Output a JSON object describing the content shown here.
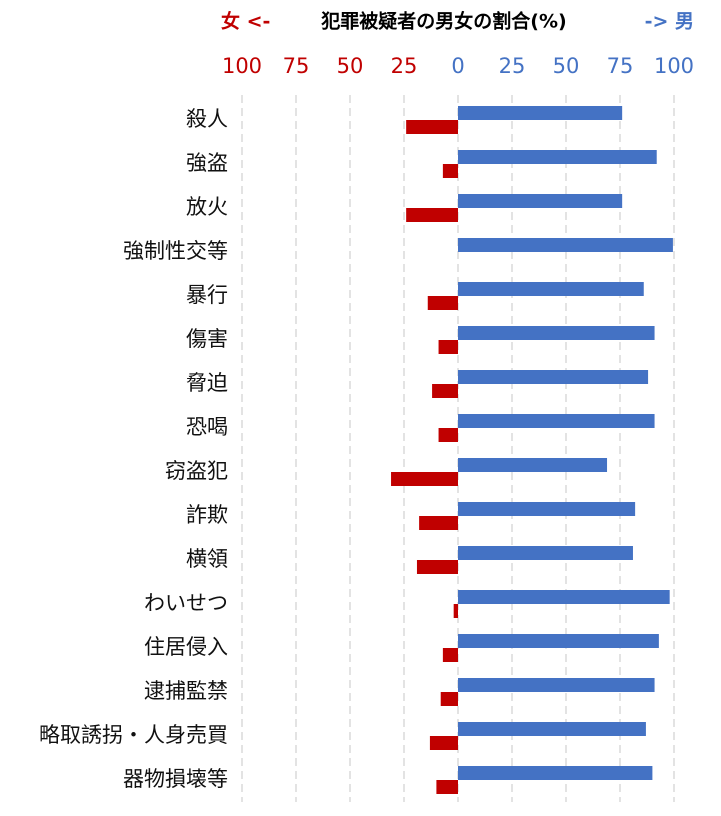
{
  "chart_data": {
    "type": "butterfly-bar",
    "title_left": "女 <-",
    "title": "犯罪被疑者の男女の割合(%)",
    "title_right": "-> 男",
    "title_left_color": "#c00000",
    "title_right_color": "#4472c4",
    "categories": [
      "殺人",
      "強盗",
      "放火",
      "強制性交等",
      "暴行",
      "傷害",
      "脅迫",
      "恐喝",
      "窃盗犯",
      "詐欺",
      "横領",
      "わいせつ",
      "住居侵入",
      "逮捕監禁",
      "略取誘拐・人身売買",
      "器物損壊等"
    ],
    "series": [
      {
        "color": "#c00000",
        "side": "left",
        "values": [
          24,
          7,
          24,
          0,
          14,
          9,
          12,
          9,
          31,
          18,
          19,
          2,
          7,
          8,
          13,
          10
        ]
      },
      {
        "color": "#4472c4",
        "side": "right",
        "values": [
          76,
          92,
          76,
          99.5,
          86,
          91,
          88,
          91,
          69,
          82,
          81,
          98,
          93,
          91,
          87,
          90
        ]
      }
    ],
    "xlim": [
      0,
      100
    ],
    "xticks_left": [
      100,
      75,
      50,
      25
    ],
    "xticks_right": [
      0,
      25,
      50,
      75,
      100
    ],
    "grid": true
  }
}
